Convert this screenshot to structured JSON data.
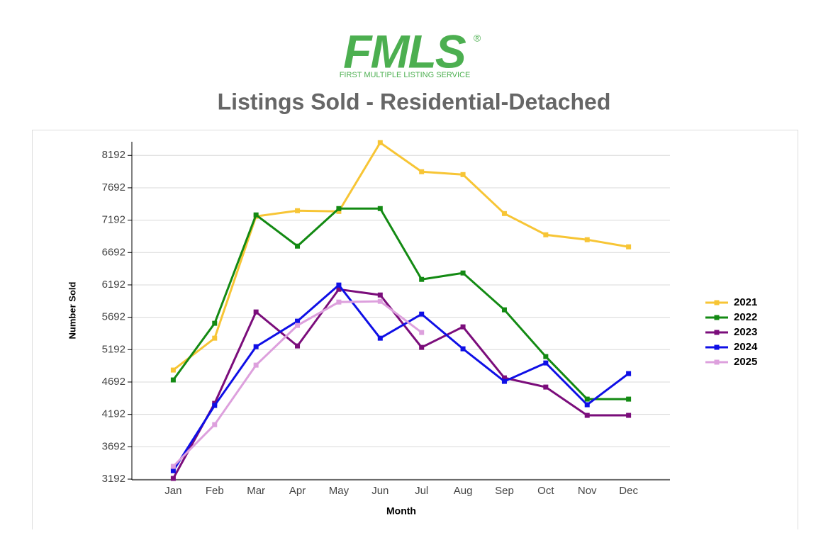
{
  "logo": {
    "text": "FMLS",
    "mark": "®",
    "tagline": "FIRST MULTIPLE LISTING SERVICE"
  },
  "chart_data": {
    "type": "line",
    "title": "Listings Sold - Residential-Detached",
    "x_label": "Month",
    "y_label": "Number Sold",
    "categories": [
      "Jan",
      "Feb",
      "Mar",
      "Apr",
      "May",
      "Jun",
      "Jul",
      "Aug",
      "Sep",
      "Oct",
      "Nov",
      "Dec"
    ],
    "ylim": [
      3192,
      8392
    ],
    "yticks": [
      3192,
      3692,
      4192,
      4692,
      5192,
      5692,
      6192,
      6692,
      7192,
      7692,
      8192
    ],
    "grid": true,
    "legend": "right",
    "series": [
      {
        "name": "2021",
        "color": "#f7c535",
        "values": [
          4877,
          5369,
          7251,
          7338,
          7327,
          8389,
          7940,
          7896,
          7294,
          6966,
          6890,
          6780
        ]
      },
      {
        "name": "2022",
        "color": "#138a13",
        "values": [
          4724,
          5599,
          7273,
          6791,
          7371,
          7371,
          6277,
          6376,
          5807,
          5085,
          4428,
          4428
        ]
      },
      {
        "name": "2023",
        "color": "#7b0d7b",
        "values": [
          3203,
          4363,
          5774,
          5249,
          6124,
          6036,
          5227,
          5544,
          4756,
          4614,
          4177,
          4177
        ]
      },
      {
        "name": "2024",
        "color": "#0f0fe6",
        "values": [
          3323,
          4330,
          5238,
          5632,
          6190,
          5369,
          5741,
          5205,
          4702,
          4986,
          4341,
          4822
        ]
      },
      {
        "name": "2025",
        "color": "#dda0dd",
        "values": [
          3389,
          4034,
          4953,
          5566,
          5927,
          5938,
          5457,
          null,
          null,
          null,
          null,
          null
        ]
      }
    ]
  }
}
